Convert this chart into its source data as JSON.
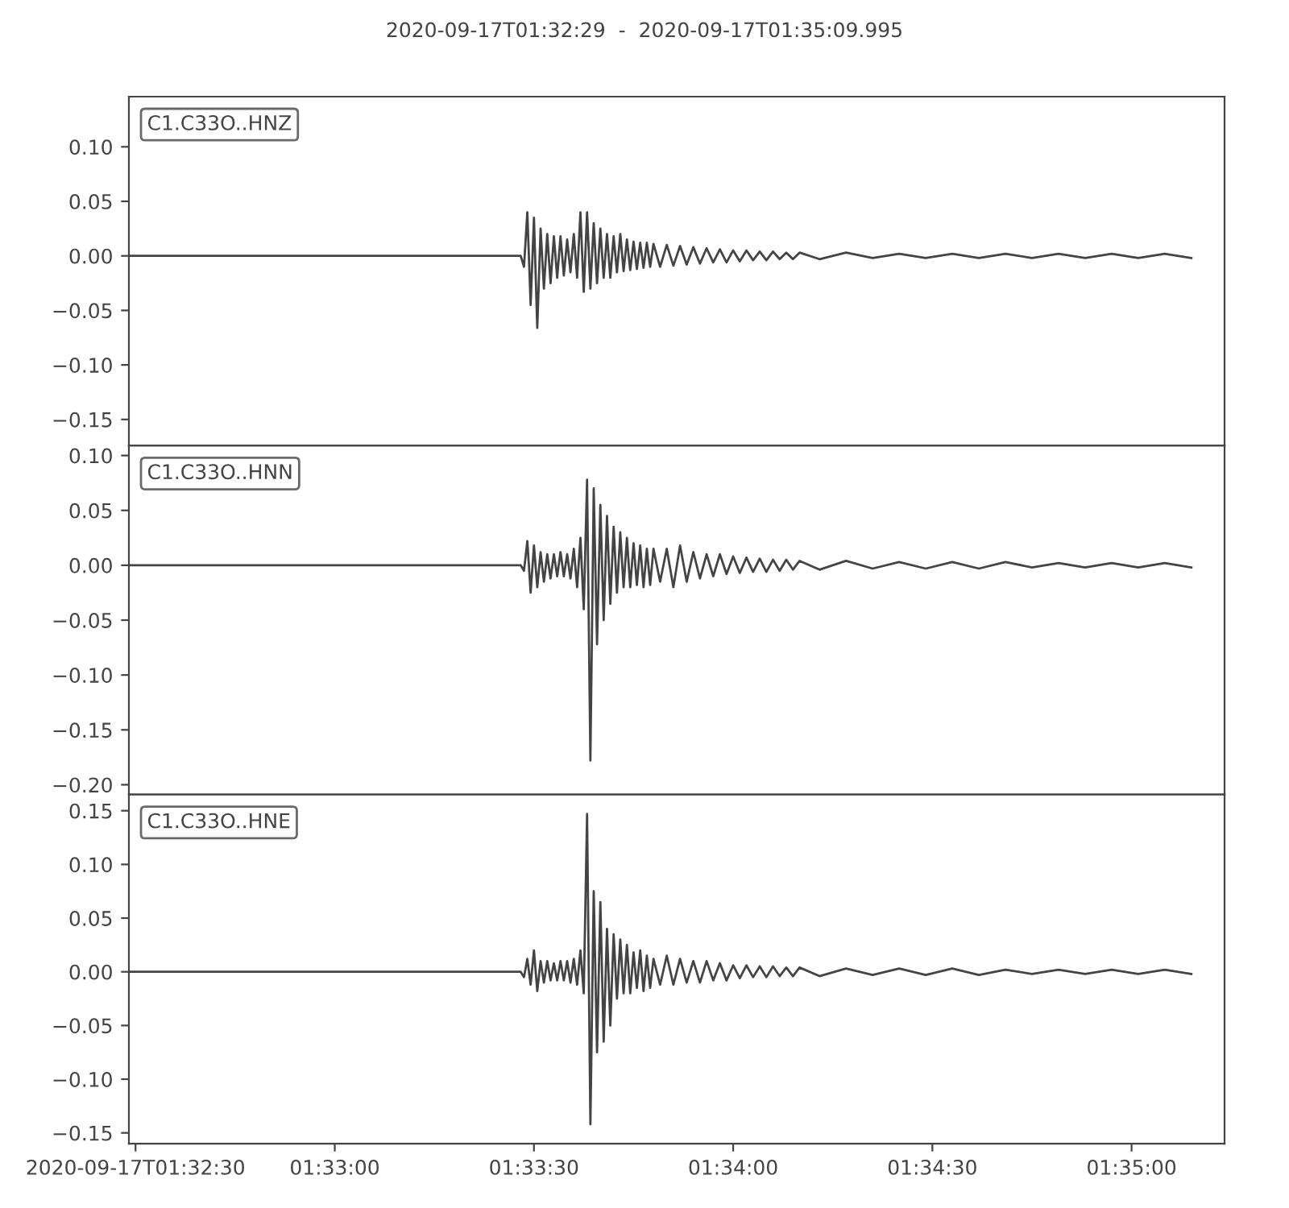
{
  "chart_data": [
    {
      "type": "line",
      "title": "2020-09-17T01:32:29  -  2020-09-17T01:35:09.995",
      "legend": "top left",
      "tick_labels": "y",
      "x": [
        "2020-09-17T01:32:29",
        "2020-09-17T01:33:28",
        "2020-09-17T01:33:28.5",
        "2020-09-17T01:33:29",
        "2020-09-17T01:33:29.5",
        "2020-09-17T01:33:30",
        "2020-09-17T01:33:30.5",
        "2020-09-17T01:33:31",
        "2020-09-17T01:33:31.5",
        "2020-09-17T01:33:32",
        "2020-09-17T01:33:32.5",
        "2020-09-17T01:33:33",
        "2020-09-17T01:33:33.5",
        "2020-09-17T01:33:34",
        "2020-09-17T01:33:34.5",
        "2020-09-17T01:33:35",
        "2020-09-17T01:33:35.5",
        "2020-09-17T01:33:36",
        "2020-09-17T01:33:36.5",
        "2020-09-17T01:33:37",
        "2020-09-17T01:33:37.5",
        "2020-09-17T01:33:38",
        "2020-09-17T01:33:38.5",
        "2020-09-17T01:33:39",
        "2020-09-17T01:33:39.5",
        "2020-09-17T01:33:40",
        "2020-09-17T01:33:40.5",
        "2020-09-17T01:33:41",
        "2020-09-17T01:33:41.5",
        "2020-09-17T01:33:42",
        "2020-09-17T01:33:42.5",
        "2020-09-17T01:33:43",
        "2020-09-17T01:33:43.5",
        "2020-09-17T01:33:44",
        "2020-09-17T01:33:44.5",
        "2020-09-17T01:33:45",
        "2020-09-17T01:33:45.5",
        "2020-09-17T01:33:46",
        "2020-09-17T01:33:46.5",
        "2020-09-17T01:33:47",
        "2020-09-17T01:33:47.5",
        "2020-09-17T01:33:48",
        "2020-09-17T01:33:49",
        "2020-09-17T01:33:50",
        "2020-09-17T01:33:51",
        "2020-09-17T01:33:52",
        "2020-09-17T01:33:53",
        "2020-09-17T01:33:54",
        "2020-09-17T01:33:55",
        "2020-09-17T01:33:56",
        "2020-09-17T01:33:57",
        "2020-09-17T01:33:58",
        "2020-09-17T01:33:59",
        "2020-09-17T01:34:00",
        "2020-09-17T01:34:01",
        "2020-09-17T01:34:02",
        "2020-09-17T01:34:03",
        "2020-09-17T01:34:04",
        "2020-09-17T01:34:05",
        "2020-09-17T01:34:06",
        "2020-09-17T01:34:07",
        "2020-09-17T01:34:08",
        "2020-09-17T01:34:09",
        "2020-09-17T01:34:10",
        "2020-09-17T01:34:13",
        "2020-09-17T01:34:17",
        "2020-09-17T01:34:21",
        "2020-09-17T01:34:25",
        "2020-09-17T01:34:29",
        "2020-09-17T01:34:33",
        "2020-09-17T01:34:37",
        "2020-09-17T01:34:41",
        "2020-09-17T01:34:45",
        "2020-09-17T01:34:49",
        "2020-09-17T01:34:53",
        "2020-09-17T01:34:57",
        "2020-09-17T01:35:01",
        "2020-09-17T01:35:05",
        "2020-09-17T01:35:09"
      ],
      "series": [
        {
          "name": "C1.C33O..HNZ",
          "color": "#444444",
          "values": [
            0,
            0,
            -0.01,
            0.04,
            -0.045,
            0.035,
            -0.066,
            0.025,
            -0.03,
            0.02,
            -0.025,
            0.018,
            -0.02,
            0.018,
            -0.018,
            0.015,
            -0.015,
            0.02,
            -0.02,
            0.04,
            -0.033,
            0.04,
            -0.03,
            0.03,
            -0.025,
            0.025,
            -0.02,
            0.02,
            -0.02,
            0.018,
            -0.015,
            0.02,
            -0.014,
            0.015,
            -0.013,
            0.013,
            -0.012,
            0.012,
            -0.011,
            0.012,
            -0.01,
            0.011,
            -0.01,
            0.01,
            -0.009,
            0.009,
            -0.008,
            0.008,
            -0.007,
            0.007,
            -0.006,
            0.006,
            -0.006,
            0.005,
            -0.005,
            0.005,
            -0.004,
            0.004,
            -0.004,
            0.004,
            -0.003,
            0.003,
            -0.003,
            0.003,
            -0.003,
            0.003,
            -0.002,
            0.002,
            -0.002,
            0.002,
            -0.002,
            0.002,
            -0.002,
            0.002,
            -0.002,
            0.002,
            -0.002,
            0.002,
            -0.002
          ]
        }
      ],
      "xlim": [
        "2020-09-17T01:32:29",
        "2020-09-17T01:35:14"
      ],
      "ylim": [
        -0.174,
        0.146
      ],
      "yticks": [
        {
          "value": -0.15,
          "label": "−0.15"
        },
        {
          "value": -0.1,
          "label": "−0.10"
        },
        {
          "value": -0.05,
          "label": "−0.05"
        },
        {
          "value": 0,
          "label": "0.00"
        },
        {
          "value": 0.05,
          "label": "0.05"
        },
        {
          "value": 0.1,
          "label": "0.10"
        }
      ]
    },
    {
      "type": "line",
      "legend": "top left",
      "tick_labels": "y",
      "x": [
        "2020-09-17T01:32:29",
        "2020-09-17T01:33:28",
        "2020-09-17T01:33:28.5",
        "2020-09-17T01:33:29",
        "2020-09-17T01:33:29.5",
        "2020-09-17T01:33:30",
        "2020-09-17T01:33:30.5",
        "2020-09-17T01:33:31",
        "2020-09-17T01:33:31.5",
        "2020-09-17T01:33:32",
        "2020-09-17T01:33:32.5",
        "2020-09-17T01:33:33",
        "2020-09-17T01:33:33.5",
        "2020-09-17T01:33:34",
        "2020-09-17T01:33:34.5",
        "2020-09-17T01:33:35",
        "2020-09-17T01:33:35.5",
        "2020-09-17T01:33:36",
        "2020-09-17T01:33:36.5",
        "2020-09-17T01:33:37",
        "2020-09-17T01:33:37.5",
        "2020-09-17T01:33:38",
        "2020-09-17T01:33:38.5",
        "2020-09-17T01:33:39",
        "2020-09-17T01:33:39.5",
        "2020-09-17T01:33:40",
        "2020-09-17T01:33:40.5",
        "2020-09-17T01:33:41",
        "2020-09-17T01:33:41.5",
        "2020-09-17T01:33:42",
        "2020-09-17T01:33:42.5",
        "2020-09-17T01:33:43",
        "2020-09-17T01:33:43.5",
        "2020-09-17T01:33:44",
        "2020-09-17T01:33:44.5",
        "2020-09-17T01:33:45",
        "2020-09-17T01:33:45.5",
        "2020-09-17T01:33:46",
        "2020-09-17T01:33:46.5",
        "2020-09-17T01:33:47",
        "2020-09-17T01:33:47.5",
        "2020-09-17T01:33:48",
        "2020-09-17T01:33:49",
        "2020-09-17T01:33:50",
        "2020-09-17T01:33:51",
        "2020-09-17T01:33:52",
        "2020-09-17T01:33:53",
        "2020-09-17T01:33:54",
        "2020-09-17T01:33:55",
        "2020-09-17T01:33:56",
        "2020-09-17T01:33:57",
        "2020-09-17T01:33:58",
        "2020-09-17T01:33:59",
        "2020-09-17T01:34:00",
        "2020-09-17T01:34:01",
        "2020-09-17T01:34:02",
        "2020-09-17T01:34:03",
        "2020-09-17T01:34:04",
        "2020-09-17T01:34:05",
        "2020-09-17T01:34:06",
        "2020-09-17T01:34:07",
        "2020-09-17T01:34:08",
        "2020-09-17T01:34:09",
        "2020-09-17T01:34:10",
        "2020-09-17T01:34:13",
        "2020-09-17T01:34:17",
        "2020-09-17T01:34:21",
        "2020-09-17T01:34:25",
        "2020-09-17T01:34:29",
        "2020-09-17T01:34:33",
        "2020-09-17T01:34:37",
        "2020-09-17T01:34:41",
        "2020-09-17T01:34:45",
        "2020-09-17T01:34:49",
        "2020-09-17T01:34:53",
        "2020-09-17T01:34:57",
        "2020-09-17T01:35:01",
        "2020-09-17T01:35:05",
        "2020-09-17T01:35:09"
      ],
      "series": [
        {
          "name": "C1.C33O..HNN",
          "color": "#444444",
          "values": [
            0,
            0,
            -0.005,
            0.022,
            -0.025,
            0.018,
            -0.02,
            0.012,
            -0.015,
            0.01,
            -0.012,
            0.01,
            -0.01,
            0.012,
            -0.01,
            0.01,
            -0.012,
            0.015,
            -0.02,
            0.025,
            -0.04,
            0.078,
            -0.178,
            0.07,
            -0.072,
            0.055,
            -0.05,
            0.045,
            -0.035,
            0.035,
            -0.025,
            0.03,
            -0.02,
            0.025,
            -0.02,
            0.02,
            -0.018,
            0.018,
            -0.02,
            0.015,
            -0.018,
            0.015,
            -0.015,
            0.015,
            -0.02,
            0.018,
            -0.015,
            0.012,
            -0.012,
            0.01,
            -0.01,
            0.01,
            -0.008,
            0.008,
            -0.007,
            0.007,
            -0.006,
            0.006,
            -0.006,
            0.005,
            -0.005,
            0.005,
            -0.004,
            0.004,
            -0.004,
            0.004,
            -0.003,
            0.003,
            -0.003,
            0.003,
            -0.003,
            0.003,
            -0.002,
            0.002,
            -0.002,
            0.002,
            -0.002,
            0.002,
            -0.002
          ]
        }
      ],
      "xlim": [
        "2020-09-17T01:32:29",
        "2020-09-17T01:35:14"
      ],
      "ylim": [
        -0.209,
        0.109
      ],
      "yticks": [
        {
          "value": -0.2,
          "label": "−0.20"
        },
        {
          "value": -0.15,
          "label": "−0.15"
        },
        {
          "value": -0.1,
          "label": "−0.10"
        },
        {
          "value": -0.05,
          "label": "−0.05"
        },
        {
          "value": 0,
          "label": "0.00"
        },
        {
          "value": 0.05,
          "label": "0.05"
        },
        {
          "value": 0.1,
          "label": "0.10"
        }
      ]
    },
    {
      "type": "line",
      "legend": "top left",
      "x": [
        "2020-09-17T01:32:29",
        "2020-09-17T01:33:28",
        "2020-09-17T01:33:28.5",
        "2020-09-17T01:33:29",
        "2020-09-17T01:33:29.5",
        "2020-09-17T01:33:30",
        "2020-09-17T01:33:30.5",
        "2020-09-17T01:33:31",
        "2020-09-17T01:33:31.5",
        "2020-09-17T01:33:32",
        "2020-09-17T01:33:32.5",
        "2020-09-17T01:33:33",
        "2020-09-17T01:33:33.5",
        "2020-09-17T01:33:34",
        "2020-09-17T01:33:34.5",
        "2020-09-17T01:33:35",
        "2020-09-17T01:33:35.5",
        "2020-09-17T01:33:36",
        "2020-09-17T01:33:36.5",
        "2020-09-17T01:33:37",
        "2020-09-17T01:33:37.5",
        "2020-09-17T01:33:38",
        "2020-09-17T01:33:38.5",
        "2020-09-17T01:33:39",
        "2020-09-17T01:33:39.5",
        "2020-09-17T01:33:40",
        "2020-09-17T01:33:40.5",
        "2020-09-17T01:33:41",
        "2020-09-17T01:33:41.5",
        "2020-09-17T01:33:42",
        "2020-09-17T01:33:42.5",
        "2020-09-17T01:33:43",
        "2020-09-17T01:33:43.5",
        "2020-09-17T01:33:44",
        "2020-09-17T01:33:44.5",
        "2020-09-17T01:33:45",
        "2020-09-17T01:33:45.5",
        "2020-09-17T01:33:46",
        "2020-09-17T01:33:46.5",
        "2020-09-17T01:33:47",
        "2020-09-17T01:33:47.5",
        "2020-09-17T01:33:48",
        "2020-09-17T01:33:49",
        "2020-09-17T01:33:50",
        "2020-09-17T01:33:51",
        "2020-09-17T01:33:52",
        "2020-09-17T01:33:53",
        "2020-09-17T01:33:54",
        "2020-09-17T01:33:55",
        "2020-09-17T01:33:56",
        "2020-09-17T01:33:57",
        "2020-09-17T01:33:58",
        "2020-09-17T01:33:59",
        "2020-09-17T01:34:00",
        "2020-09-17T01:34:01",
        "2020-09-17T01:34:02",
        "2020-09-17T01:34:03",
        "2020-09-17T01:34:04",
        "2020-09-17T01:34:05",
        "2020-09-17T01:34:06",
        "2020-09-17T01:34:07",
        "2020-09-17T01:34:08",
        "2020-09-17T01:34:09",
        "2020-09-17T01:34:10",
        "2020-09-17T01:34:13",
        "2020-09-17T01:34:17",
        "2020-09-17T01:34:21",
        "2020-09-17T01:34:25",
        "2020-09-17T01:34:29",
        "2020-09-17T01:34:33",
        "2020-09-17T01:34:37",
        "2020-09-17T01:34:41",
        "2020-09-17T01:34:45",
        "2020-09-17T01:34:49",
        "2020-09-17T01:34:53",
        "2020-09-17T01:34:57",
        "2020-09-17T01:35:01",
        "2020-09-17T01:35:05",
        "2020-09-17T01:35:09"
      ],
      "series": [
        {
          "name": "C1.C33O..HNE",
          "color": "#444444",
          "values": [
            0,
            0,
            -0.005,
            0.012,
            -0.012,
            0.02,
            -0.018,
            0.01,
            -0.01,
            0.01,
            -0.008,
            0.008,
            -0.008,
            0.01,
            -0.008,
            0.01,
            -0.01,
            0.012,
            -0.012,
            0.02,
            -0.02,
            0.147,
            -0.142,
            0.075,
            -0.075,
            0.065,
            -0.065,
            0.04,
            -0.05,
            0.035,
            -0.025,
            0.03,
            -0.02,
            0.025,
            -0.02,
            0.018,
            -0.015,
            0.02,
            -0.018,
            0.015,
            -0.015,
            0.012,
            -0.012,
            0.015,
            -0.012,
            0.012,
            -0.01,
            0.01,
            -0.01,
            0.01,
            -0.008,
            0.008,
            -0.008,
            0.006,
            -0.006,
            0.006,
            -0.005,
            0.005,
            -0.005,
            0.005,
            -0.004,
            0.004,
            -0.004,
            0.004,
            -0.004,
            0.003,
            -0.003,
            0.003,
            -0.003,
            0.003,
            -0.003,
            0.002,
            -0.002,
            0.002,
            -0.002,
            0.002,
            -0.002,
            0.002,
            -0.002
          ]
        }
      ],
      "xlim": [
        "2020-09-17T01:32:29",
        "2020-09-17T01:35:14"
      ],
      "xticks": [
        {
          "value": "2020-09-17T01:32:30",
          "label": "2020-09-17T01:32:30"
        },
        {
          "value": "2020-09-17T01:33:00",
          "label": "01:33:00"
        },
        {
          "value": "2020-09-17T01:33:30",
          "label": "01:33:30"
        },
        {
          "value": "2020-09-17T01:34:00",
          "label": "01:34:00"
        },
        {
          "value": "2020-09-17T01:34:30",
          "label": "01:34:30"
        },
        {
          "value": "2020-09-17T01:35:00",
          "label": "01:35:00"
        }
      ],
      "ylim": [
        -0.16,
        0.165
      ],
      "yticks": [
        {
          "value": -0.15,
          "label": "−0.15"
        },
        {
          "value": -0.1,
          "label": "−0.10"
        },
        {
          "value": -0.05,
          "label": "−0.05"
        },
        {
          "value": 0,
          "label": "0.00"
        },
        {
          "value": 0.05,
          "label": "0.05"
        },
        {
          "value": 0.1,
          "label": "0.10"
        },
        {
          "value": 0.15,
          "label": "0.15"
        }
      ]
    }
  ]
}
